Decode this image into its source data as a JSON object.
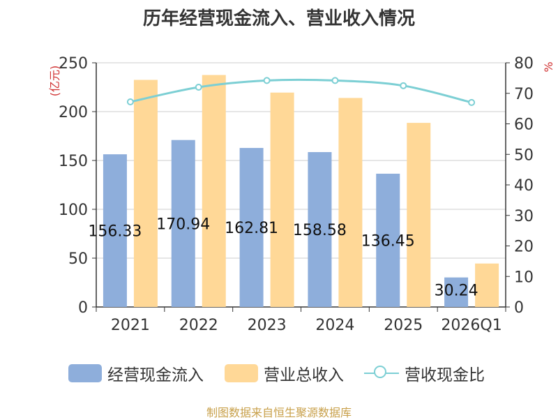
{
  "title": "历年经营现金流入、营业收入情况",
  "source": "制图数据来自恒生聚源数据库",
  "colors": {
    "cashflow": "#8eaedb",
    "revenue": "#ffd897",
    "ratio": "#7ccfd4",
    "axis_unit": "#d03030"
  },
  "chart_data": {
    "type": "bar",
    "categories": [
      "2021",
      "2022",
      "2023",
      "2024",
      "2025",
      "2026Q1"
    ],
    "ylabel": "(亿元)",
    "y2label": "%",
    "ylim": [
      0,
      250
    ],
    "y2lim": [
      0,
      80
    ],
    "yticks": [
      0,
      50,
      100,
      150,
      200,
      250
    ],
    "y2ticks": [
      0,
      10,
      20,
      30,
      40,
      50,
      60,
      70,
      80
    ],
    "grid": true,
    "legend_position": "bottom",
    "series": [
      {
        "name": "经营现金流入",
        "type": "bar",
        "axis": "left",
        "values": [
          156.33,
          170.94,
          162.81,
          158.58,
          136.45,
          30.24
        ],
        "labels": [
          "156.33",
          "170.94",
          "162.81",
          "158.58",
          "136.45",
          "30.24"
        ]
      },
      {
        "name": "营业总收入",
        "type": "bar",
        "axis": "left",
        "values": [
          232.5,
          237.5,
          219.5,
          214.0,
          188.5,
          44.5
        ]
      },
      {
        "name": "营收现金比",
        "type": "line",
        "axis": "right",
        "values": [
          67.2,
          72.0,
          74.2,
          74.2,
          72.5,
          67.0
        ]
      }
    ]
  }
}
